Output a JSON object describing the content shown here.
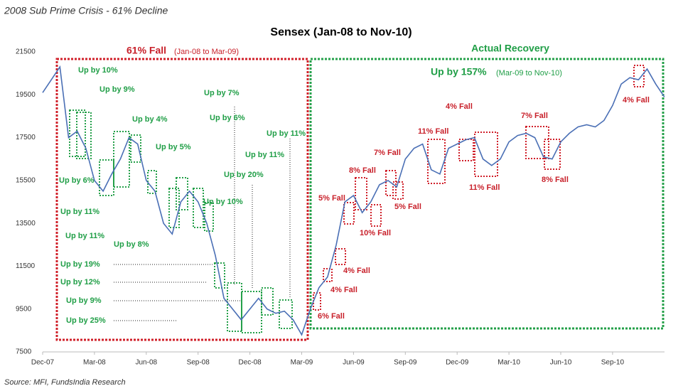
{
  "chart_data": {
    "type": "line",
    "header": "2008 Sub Prime Crisis - 61% Decline",
    "title": "Sensex (Jan-08 to Nov-10)",
    "fall_label": "61% Fall",
    "fall_period": "(Jan-08 to Mar-09)",
    "recovery_title": "Actual Recovery",
    "recovery_label": "Up by 157%",
    "recovery_period": "(Mar-09 to Nov-10)",
    "source": "Source: MFI, FundsIndia Research",
    "categories": [
      "Dec-07",
      null,
      null,
      null,
      null,
      null,
      "Mar-08",
      null,
      null,
      null,
      null,
      null,
      "Jun-08",
      null,
      null,
      null,
      null,
      null,
      "Sep-08",
      null,
      null,
      null,
      null,
      null,
      "Dec-08",
      null,
      null,
      null,
      null,
      null,
      "Mar-09",
      null,
      null,
      null,
      null,
      null,
      "Jun-09",
      null,
      null,
      null,
      null,
      null,
      "Sep-09",
      null,
      null,
      null,
      null,
      null,
      "Dec-09",
      null,
      null,
      null,
      null,
      null,
      "Mar-10",
      null,
      null,
      null,
      null,
      null,
      "Jun-10",
      null,
      null,
      null,
      null,
      null,
      "Sep-10",
      null,
      null,
      null,
      null,
      null,
      null
    ],
    "series": [
      {
        "name": "Sensex",
        "color": "#4a6fb5",
        "values": [
          19600,
          20200,
          20800,
          17500,
          17800,
          17000,
          15500,
          15000,
          15800,
          16500,
          17500,
          17200,
          15500,
          15000,
          13500,
          13000,
          14500,
          15000,
          14500,
          13500,
          12000,
          10000,
          9500,
          9000,
          9500,
          10000,
          9500,
          9300,
          9400,
          9000,
          8300,
          9500,
          10500,
          11000,
          12500,
          14500,
          14800,
          14000,
          14500,
          15300,
          15500,
          15200,
          16500,
          17000,
          17200,
          16000,
          15800,
          17000,
          17200,
          17400,
          17500,
          16500,
          16200,
          16500,
          17300,
          17600,
          17700,
          17500,
          16600,
          16500,
          17300,
          17700,
          18000,
          18100,
          18000,
          18300,
          19000,
          20000,
          20300,
          20200,
          20700,
          20000,
          19400
        ]
      }
    ],
    "ylim": [
      7500,
      21500
    ],
    "yticks": [
      7500,
      9500,
      11500,
      13500,
      15500,
      17500,
      19500,
      21500
    ],
    "rise_annotations": [
      "Up by 10%",
      "Up by 9%",
      "Up by 4%",
      "Up by 5%",
      "Up by 7%",
      "Up by 6%",
      "Up by 11%",
      "Up by 11%",
      "Up by 20%",
      "Up by 10%",
      "Up by 6%",
      "Up by 11%",
      "Up by 11%",
      "Up by 8%",
      "Up by 19%",
      "Up by 12%",
      "Up by 9%",
      "Up by 25%"
    ],
    "fall_annotations": [
      "6% Fall",
      "4% Fall",
      "4% Fall",
      "5% Fall",
      "8% Fall",
      "10% Fall",
      "7% Fall",
      "5% Fall",
      "11% Fall",
      "4% Fall",
      "11% Fall",
      "7% Fall",
      "8% Fall",
      "4% Fall"
    ]
  }
}
